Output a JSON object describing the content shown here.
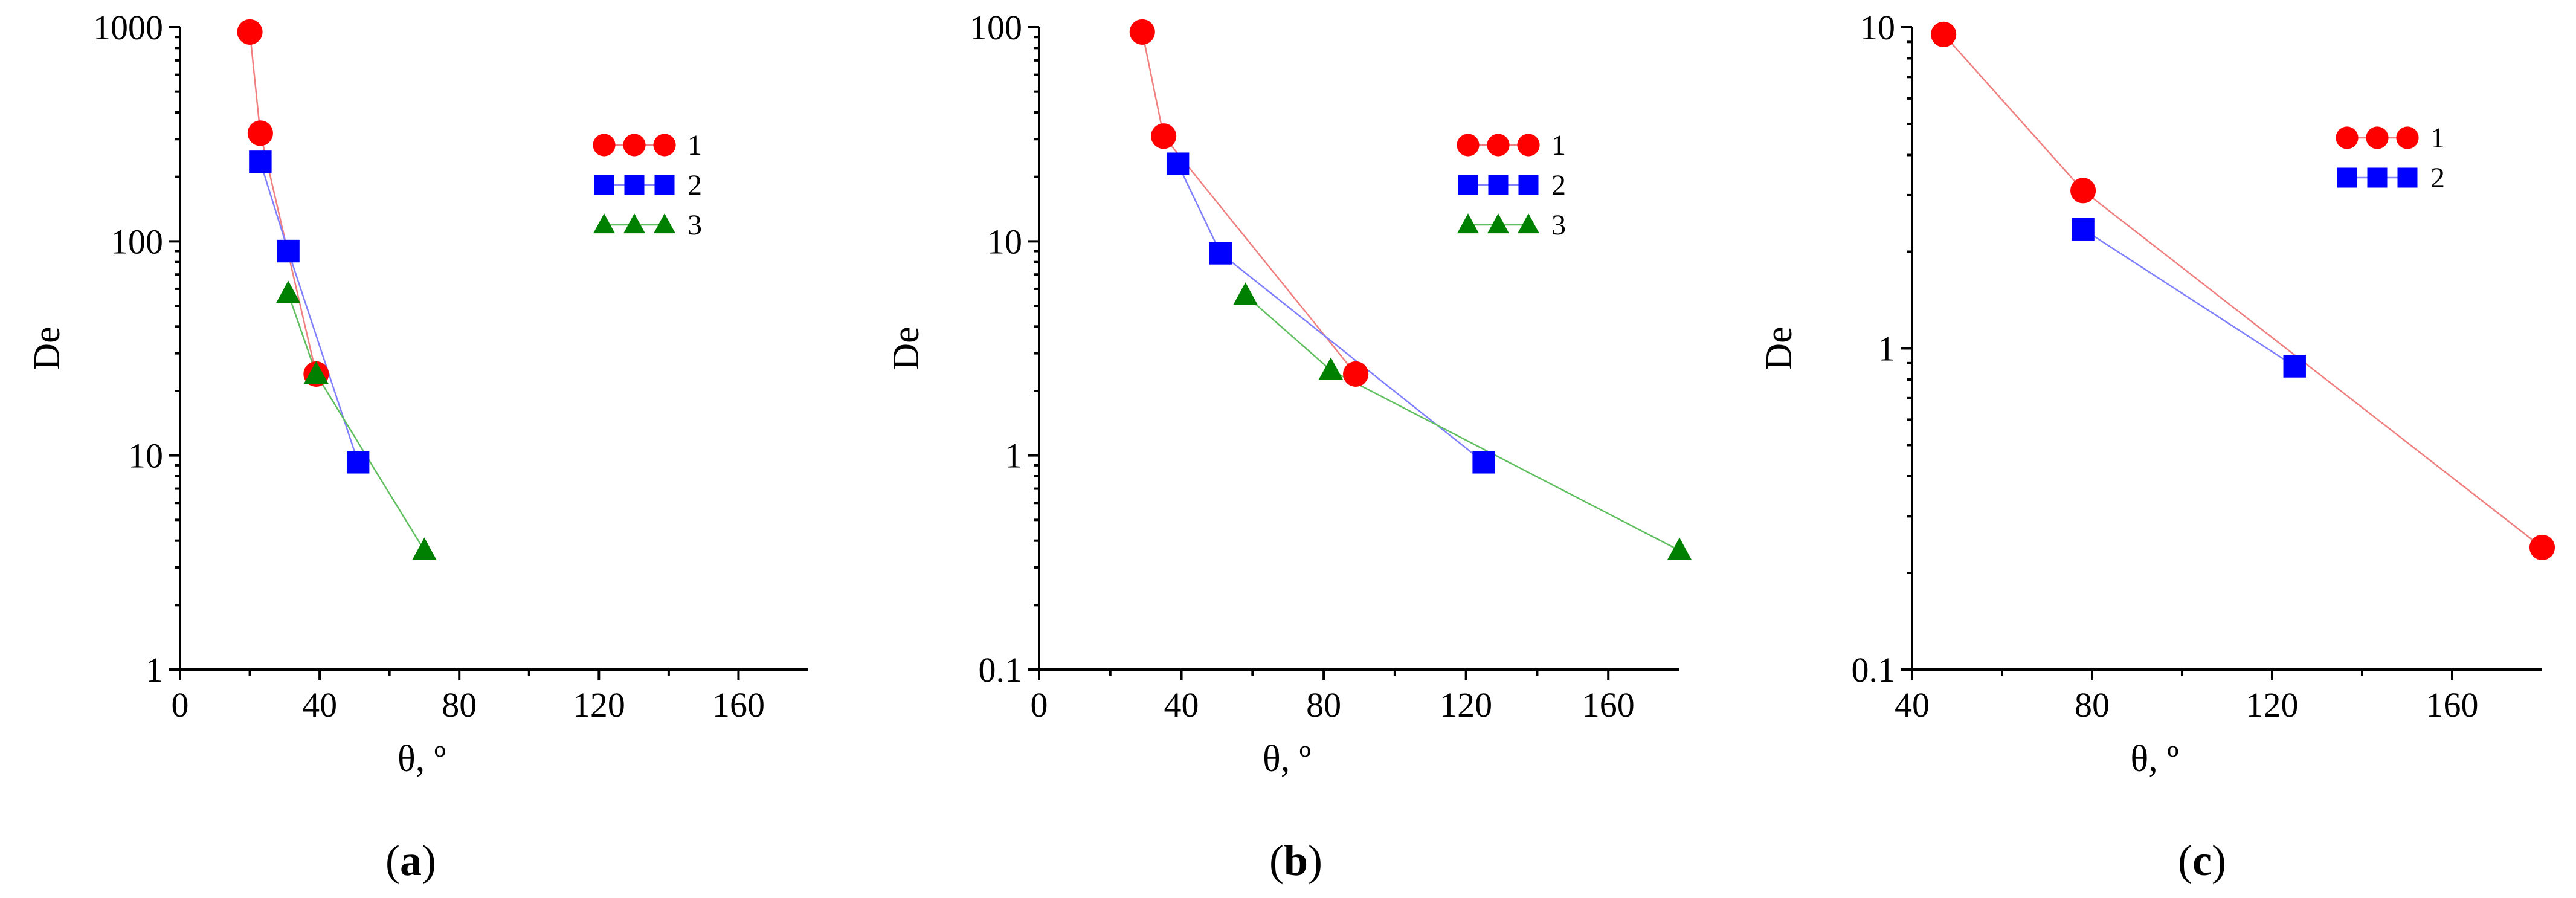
{
  "chart_data": [
    {
      "type": "line",
      "panel_label": "a",
      "xlabel": "θ, º",
      "ylabel": "De",
      "x_scale": "linear",
      "y_scale": "log",
      "xlim": [
        0,
        180
      ],
      "ylim": [
        1,
        1000
      ],
      "x_ticks": [
        0,
        40,
        80,
        120,
        160
      ],
      "y_ticks": [
        1,
        10,
        100,
        1000
      ],
      "x_tick_labels": [
        "0",
        "40",
        "80",
        "120",
        "160"
      ],
      "y_tick_labels": [
        "1",
        "10",
        "100",
        "1000"
      ],
      "legend_position": "top-right",
      "series": [
        {
          "name": "1",
          "marker": "circle",
          "color": "#ff0000",
          "line_color": "#f08080",
          "points": [
            [
              20,
              950
            ],
            [
              23,
              320
            ],
            [
              39,
              24
            ]
          ]
        },
        {
          "name": "2",
          "marker": "square",
          "color": "#0000ff",
          "line_color": "#8080ff",
          "points": [
            [
              23,
              235
            ],
            [
              31,
              90
            ],
            [
              51,
              9.3
            ]
          ]
        },
        {
          "name": "3",
          "marker": "triangle",
          "color": "#008000",
          "line_color": "#60c060",
          "points": [
            [
              31,
              57
            ],
            [
              39,
              24
            ],
            [
              70,
              3.6
            ]
          ]
        }
      ]
    },
    {
      "type": "line",
      "panel_label": "b",
      "xlabel": "θ, º",
      "ylabel": "De",
      "x_scale": "linear",
      "y_scale": "log",
      "xlim": [
        0,
        180
      ],
      "ylim": [
        0.1,
        100
      ],
      "x_ticks": [
        0,
        40,
        80,
        120,
        160
      ],
      "y_ticks": [
        0.1,
        1,
        10,
        100
      ],
      "x_tick_labels": [
        "0",
        "40",
        "80",
        "120",
        "160"
      ],
      "y_tick_labels": [
        "0.1",
        "1",
        "10",
        "100"
      ],
      "legend_position": "top-right",
      "series": [
        {
          "name": "1",
          "marker": "circle",
          "color": "#ff0000",
          "line_color": "#f08080",
          "points": [
            [
              29,
              95
            ],
            [
              35,
              31
            ],
            [
              89,
              2.4
            ]
          ]
        },
        {
          "name": "2",
          "marker": "square",
          "color": "#0000ff",
          "line_color": "#8080ff",
          "points": [
            [
              39,
              23
            ],
            [
              51,
              8.8
            ],
            [
              125,
              0.93
            ]
          ]
        },
        {
          "name": "3",
          "marker": "triangle",
          "color": "#008000",
          "line_color": "#60c060",
          "points": [
            [
              58,
              5.6
            ],
            [
              82,
              2.5
            ],
            [
              180,
              0.36
            ]
          ]
        }
      ]
    },
    {
      "type": "line",
      "panel_label": "c",
      "xlabel": "θ, º",
      "ylabel": "De",
      "x_scale": "linear",
      "y_scale": "log",
      "xlim": [
        40,
        180
      ],
      "ylim": [
        0.1,
        10
      ],
      "x_ticks": [
        40,
        80,
        120,
        160
      ],
      "y_ticks": [
        0.1,
        1,
        10
      ],
      "x_tick_labels": [
        "40",
        "80",
        "120",
        "160"
      ],
      "y_tick_labels": [
        "0.1",
        "1",
        "10"
      ],
      "legend_position": "top-right",
      "series": [
        {
          "name": "1",
          "marker": "circle",
          "color": "#ff0000",
          "line_color": "#f08080",
          "points": [
            [
              47,
              9.5
            ],
            [
              78,
              3.1
            ],
            [
              180,
              0.24
            ]
          ]
        },
        {
          "name": "2",
          "marker": "square",
          "color": "#0000ff",
          "line_color": "#8080ff",
          "points": [
            [
              78,
              2.35
            ],
            [
              125,
              0.88
            ]
          ]
        }
      ]
    }
  ]
}
